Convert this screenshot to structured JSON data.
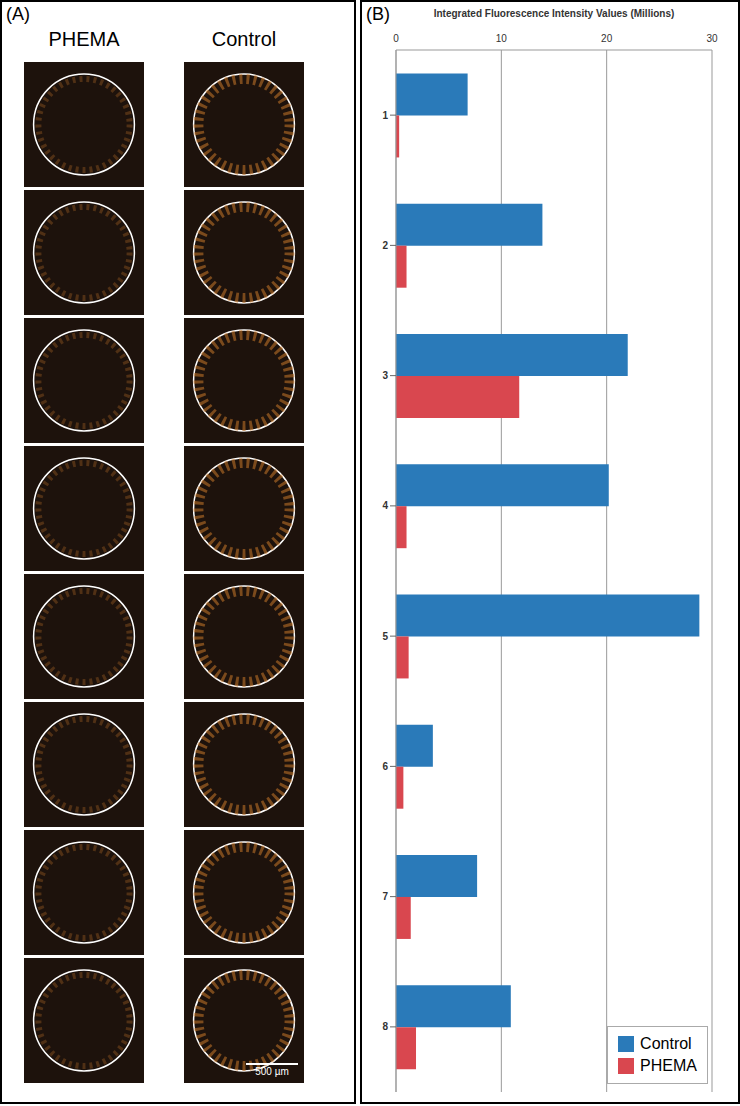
{
  "panel_a": {
    "label": "(A)",
    "columns": [
      "PHEMA",
      "Control"
    ],
    "scale_bar": "500 µm"
  },
  "panel_b": {
    "label": "(B)"
  },
  "chart_data": {
    "type": "bar",
    "orientation": "horizontal",
    "title": "Integrated Fluorescence Intensity Values (Millions)",
    "categories": [
      "1",
      "2",
      "3",
      "4",
      "5",
      "6",
      "7",
      "8"
    ],
    "series": [
      {
        "name": "Control",
        "color": "#2a7ab9",
        "values": [
          6.8,
          13.9,
          22.0,
          20.2,
          28.8,
          3.5,
          7.7,
          10.9
        ]
      },
      {
        "name": "PHEMA",
        "color": "#d9474f",
        "values": [
          0.3,
          1.0,
          11.7,
          1.0,
          1.2,
          0.7,
          1.4,
          1.9
        ]
      }
    ],
    "xlim": [
      0,
      30
    ],
    "xticks": [
      0,
      10,
      20,
      30
    ],
    "grid": true,
    "legend": "bottom right"
  }
}
